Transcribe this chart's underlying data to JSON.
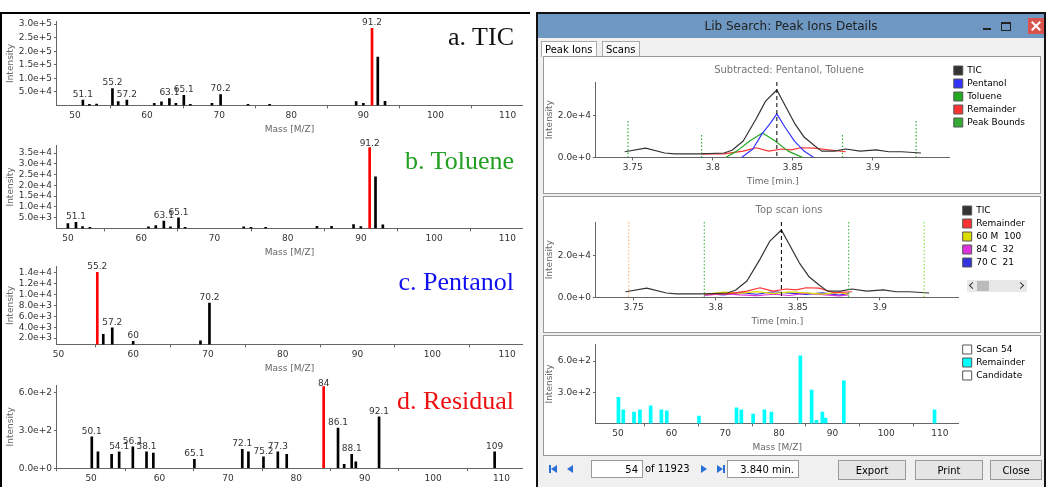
{
  "chart_data": [
    {
      "type": "bar",
      "title": "a. TIC",
      "xlabel": "Mass [M/Z]",
      "ylabel": "Intensity",
      "xlim": [
        47.5,
        112
      ],
      "xticks": [
        50,
        60,
        70,
        80,
        90,
        100,
        110
      ],
      "ylim": [
        0,
        310000
      ],
      "yticks": [
        {
          "value": 50000,
          "label": "5.0e+4"
        },
        {
          "value": 100000,
          "label": "1.0e+5"
        },
        {
          "value": 150000,
          "label": "1.5e+5"
        },
        {
          "value": 200000,
          "label": "2.0e+5"
        },
        {
          "value": 250000,
          "label": "2.5e+5"
        },
        {
          "value": 300000,
          "label": "3.0e+5"
        }
      ],
      "x": [
        51.1,
        52,
        53,
        55.2,
        56,
        57.2,
        61,
        62,
        63.1,
        64,
        65.1,
        66,
        69,
        70.2,
        74,
        77,
        89,
        90,
        91.2,
        92,
        93
      ],
      "values": [
        20000,
        4000,
        5000,
        62000,
        14000,
        20000,
        8000,
        13000,
        25000,
        8000,
        37000,
        4000,
        8000,
        40000,
        4000,
        4000,
        14000,
        8000,
        284000,
        178000,
        15000
      ],
      "colors": [
        "#000000",
        "#000000",
        "#000000",
        "#000000",
        "#000000",
        "#000000",
        "#000000",
        "#000000",
        "#000000",
        "#000000",
        "#000000",
        "#000000",
        "#000000",
        "#000000",
        "#000000",
        "#000000",
        "#000000",
        "#000000",
        "#ff0000",
        "#000000",
        "#000000"
      ],
      "annotations": [
        {
          "text": "51.1",
          "x": 51.1,
          "y": 20000
        },
        {
          "text": "55.2",
          "x": 55.2,
          "y": 62000
        },
        {
          "text": "57.2",
          "x": 57.2,
          "y": 20000
        },
        {
          "text": "63.1",
          "x": 63.1,
          "y": 25000
        },
        {
          "text": "65.1",
          "x": 65.1,
          "y": 37000
        },
        {
          "text": "70.2",
          "x": 70.2,
          "y": 40000
        },
        {
          "text": "91.2",
          "x": 91.2,
          "y": 284000
        }
      ]
    },
    {
      "type": "bar",
      "title": "b. Toluene",
      "xlabel": "Mass [M/Z]",
      "ylabel": "Intensity",
      "xlim": [
        48.5,
        112
      ],
      "xticks": [
        50,
        60,
        70,
        80,
        90,
        100,
        110
      ],
      "ylim": [
        0,
        38600
      ],
      "yticks": [
        {
          "value": 5000,
          "label": "5.0e+3"
        },
        {
          "value": 10000,
          "label": "1.0e+4"
        },
        {
          "value": 15000,
          "label": "1.5e+4"
        },
        {
          "value": 20000,
          "label": "2.0e+4"
        },
        {
          "value": 25000,
          "label": "2.5e+4"
        },
        {
          "value": 30000,
          "label": "3.0e+4"
        },
        {
          "value": 35000,
          "label": "3.5e+4"
        }
      ],
      "x": [
        50,
        51.1,
        52,
        53,
        61,
        62,
        63.1,
        64,
        65.1,
        66,
        74,
        75,
        77,
        84,
        86,
        89,
        90,
        91.2,
        92,
        93
      ],
      "values": [
        2200,
        2800,
        900,
        500,
        700,
        1300,
        3400,
        700,
        4900,
        500,
        700,
        500,
        500,
        1000,
        1000,
        1800,
        900,
        37600,
        24000,
        1700
      ],
      "colors": [
        "#000000",
        "#000000",
        "#000000",
        "#000000",
        "#000000",
        "#000000",
        "#000000",
        "#000000",
        "#000000",
        "#000000",
        "#000000",
        "#000000",
        "#000000",
        "#000000",
        "#000000",
        "#000000",
        "#000000",
        "#ff0000",
        "#000000",
        "#000000"
      ],
      "annotations": [
        {
          "text": "51.1",
          "x": 51.1,
          "y": 2800
        },
        {
          "text": "63.1",
          "x": 63.1,
          "y": 3400
        },
        {
          "text": "65.1",
          "x": 65.1,
          "y": 4900
        },
        {
          "text": "91.2",
          "x": 91.2,
          "y": 37600
        }
      ]
    },
    {
      "type": "bar",
      "title": "c. Pentanol",
      "xlabel": "Mass [M/Z]",
      "ylabel": "Intensity",
      "xlim": [
        49.8,
        112
      ],
      "xticks": [
        50,
        60,
        70,
        80,
        90,
        100,
        110
      ],
      "ylim": [
        860,
        15100
      ],
      "yticks": [
        {
          "value": 2000,
          "label": "2.0e+3"
        },
        {
          "value": 4000,
          "label": "4.0e+3"
        },
        {
          "value": 6000,
          "label": "6.0e+3"
        },
        {
          "value": 8000,
          "label": "8.0e+3"
        },
        {
          "value": 10000,
          "label": "1.0e+4"
        },
        {
          "value": 12000,
          "label": "1.2e+4"
        },
        {
          "value": 14000,
          "label": "1.4e+4"
        }
      ],
      "x": [
        55.2,
        56,
        57.2,
        60,
        69,
        70.2
      ],
      "values": [
        14000,
        2700,
        3900,
        1400,
        1500,
        8400
      ],
      "colors": [
        "#ff0000",
        "#000000",
        "#000000",
        "#000000",
        "#000000",
        "#000000"
      ],
      "annotations": [
        {
          "text": "55.2",
          "x": 55.2,
          "y": 14000
        },
        {
          "text": "57.2",
          "x": 57.2,
          "y": 3900
        },
        {
          "text": "60",
          "x": 60,
          "y": 1400
        },
        {
          "text": "70.2",
          "x": 70.2,
          "y": 8400
        }
      ]
    },
    {
      "type": "bar",
      "title": "d. Residual",
      "ylabel": "Intensity",
      "xlim": [
        45,
        113
      ],
      "xticks": [
        50,
        60,
        70,
        80,
        90,
        100,
        110
      ],
      "ylim": [
        0,
        660
      ],
      "yticks": [
        {
          "value": 0,
          "label": "0.0e+0"
        },
        {
          "value": 300,
          "label": "3.0e+2"
        },
        {
          "value": 600,
          "label": "6.0e+2"
        }
      ],
      "x": [
        50.1,
        51,
        53,
        54.1,
        56.1,
        58.1,
        59.1,
        65.1,
        72.1,
        73,
        75.2,
        77.3,
        78.6,
        84,
        86.1,
        87,
        88.1,
        88.7,
        92.1,
        109
      ],
      "values": [
        250,
        130,
        110,
        130,
        170,
        130,
        120,
        70,
        150,
        130,
        90,
        130,
        110,
        650,
        320,
        30,
        110,
        50,
        410,
        130
      ],
      "colors": [
        "#000000",
        "#000000",
        "#000000",
        "#000000",
        "#000000",
        "#000000",
        "#000000",
        "#000000",
        "#000000",
        "#000000",
        "#000000",
        "#000000",
        "#000000",
        "#ff0000",
        "#000000",
        "#000000",
        "#000000",
        "#000000",
        "#000000",
        "#000000"
      ],
      "annotations": [
        {
          "text": "50.1",
          "x": 50.1,
          "y": 250
        },
        {
          "text": "54.1",
          "x": 54.1,
          "y": 130
        },
        {
          "text": "56.1",
          "x": 56.1,
          "y": 170
        },
        {
          "text": "58.1",
          "x": 58.1,
          "y": 130
        },
        {
          "text": "65.1",
          "x": 65.1,
          "y": 70
        },
        {
          "text": "72.1",
          "x": 72.1,
          "y": 150
        },
        {
          "text": "75.2",
          "x": 75.2,
          "y": 90
        },
        {
          "text": "77.3",
          "x": 77.3,
          "y": 130
        },
        {
          "text": "84",
          "x": 84,
          "y": 650
        },
        {
          "text": "86.1",
          "x": 86.1,
          "y": 320
        },
        {
          "text": "88.1",
          "x": 88.1,
          "y": 110
        },
        {
          "text": "92.1",
          "x": 92.1,
          "y": 410
        },
        {
          "text": "109",
          "x": 109,
          "y": 130
        }
      ]
    },
    {
      "type": "other",
      "title": "Lib Search: Peak Ions Details",
      "annotations": [
        "Peak Ions",
        "Scans",
        "54",
        "of 11923",
        "3.840 min.",
        "Export",
        "Print",
        "Close"
      ]
    },
    {
      "type": "line",
      "title": "Subtracted: Pentanol, Toluene",
      "xlabel": "Time [min.]",
      "ylabel": "Intensity",
      "xlim": [
        3.727,
        3.948
      ],
      "xticks": [
        3.75,
        3.8,
        3.85,
        3.9
      ],
      "ylim": [
        0,
        36000
      ],
      "yticks": [
        {
          "value": 0,
          "label": "0.0e+0"
        },
        {
          "value": 20000,
          "label": "2.0e+4"
        }
      ],
      "legend": "right",
      "marker": "none",
      "series": [
        {
          "name": "TIC",
          "color": "#333333",
          "x": [
            3.745,
            3.758,
            3.77,
            3.776,
            3.793,
            3.807,
            3.812,
            3.819,
            3.827,
            3.833,
            3.84,
            3.845,
            3.851,
            3.857,
            3.863,
            3.868,
            3.876,
            3.883,
            3.892,
            3.902,
            3.91,
            3.918,
            3.93
          ],
          "values": [
            2700,
            4400,
            2100,
            1700,
            1700,
            2100,
            3400,
            7800,
            18300,
            26900,
            32200,
            25000,
            16400,
            9700,
            5900,
            3000,
            3000,
            4000,
            3000,
            3600,
            2700,
            2700,
            2100
          ]
        },
        {
          "name": "Pentanol",
          "color": "#3333ff",
          "x": [
            3.818,
            3.825,
            3.831,
            3.836,
            3.84,
            3.845,
            3.851,
            3.857,
            3.863
          ],
          "values": [
            0,
            4000,
            11600,
            16400,
            20800,
            14500,
            7800,
            3000,
            0
          ]
        },
        {
          "name": "Toluene",
          "color": "#22aa22",
          "x": [
            3.808,
            3.815,
            3.823,
            3.831,
            3.839,
            3.847,
            3.856
          ],
          "values": [
            0,
            3000,
            7800,
            11600,
            7800,
            3000,
            0
          ]
        },
        {
          "name": "Remainder",
          "color": "#ff3333",
          "x": [
            3.793,
            3.807,
            3.819,
            3.827,
            3.835,
            3.843,
            3.849,
            3.855,
            3.863,
            3.883
          ],
          "values": [
            1700,
            1700,
            3000,
            4600,
            3000,
            4000,
            3600,
            4600,
            4400,
            2700
          ]
        },
        {
          "name": "Peak Bounds",
          "color": "#33aa33",
          "line_style": "dotted",
          "x": [
            3.747,
            3.747,
            null,
            3.793,
            3.793,
            null,
            3.881,
            3.881,
            null,
            3.927,
            3.927
          ],
          "values": [
            0,
            18000,
            null,
            0,
            11000,
            null,
            0,
            11000,
            null,
            0,
            18000
          ]
        }
      ],
      "ref_lines": [
        {
          "axis": "x",
          "value": 3.84,
          "color": "#000000",
          "line_style": "dashed"
        }
      ]
    },
    {
      "type": "line",
      "title": "Top scan ions",
      "xlabel": "Time [min.]",
      "ylabel": "Intensity",
      "xlim": [
        3.727,
        3.948
      ],
      "xticks": [
        3.75,
        3.8,
        3.85,
        3.9
      ],
      "ylim": [
        0,
        36000
      ],
      "yticks": [
        {
          "value": 0,
          "label": "0.0e+0"
        },
        {
          "value": 20000,
          "label": "2.0e+4"
        }
      ],
      "legend": "right",
      "marker": "none",
      "series": [
        {
          "name": "TIC",
          "color": "#333333",
          "x": [
            3.745,
            3.758,
            3.77,
            3.776,
            3.793,
            3.807,
            3.812,
            3.819,
            3.827,
            3.833,
            3.84,
            3.845,
            3.851,
            3.857,
            3.863,
            3.868,
            3.876,
            3.883,
            3.892,
            3.902,
            3.91,
            3.918,
            3.93
          ],
          "values": [
            2700,
            4400,
            2100,
            1700,
            1700,
            2100,
            3400,
            7800,
            18300,
            26900,
            32200,
            25000,
            16400,
            9700,
            5900,
            3000,
            3000,
            4000,
            3000,
            3600,
            2700,
            2700,
            2100
          ]
        },
        {
          "name": "Remainder",
          "color": "#ff3333",
          "x": [
            3.793,
            3.807,
            3.819,
            3.827,
            3.835,
            3.843,
            3.849,
            3.855,
            3.863,
            3.872,
            3.883
          ],
          "values": [
            1700,
            1700,
            3000,
            4600,
            3000,
            4000,
            3600,
            4600,
            4400,
            2200,
            2700
          ]
        },
        {
          "name": "60 M  100",
          "color": "#dddd00",
          "x": [
            3.793,
            3.805,
            3.815,
            3.825,
            3.835,
            3.845,
            3.855,
            3.865,
            3.875,
            3.881
          ],
          "values": [
            1500,
            2500,
            2000,
            2800,
            1800,
            2600,
            2200,
            1600,
            2400,
            1500
          ]
        },
        {
          "name": "84 C  32",
          "color": "#dd33dd",
          "x": [
            3.793,
            3.805,
            3.815,
            3.825,
            3.835,
            3.845,
            3.855,
            3.865,
            3.875,
            3.881
          ],
          "values": [
            1000,
            1800,
            1200,
            800,
            1500,
            900,
            2000,
            1300,
            700,
            1200
          ]
        },
        {
          "name": "70 C  21",
          "color": "#3333dd",
          "x": [
            3.793,
            3.805,
            3.815,
            3.825,
            3.835,
            3.845,
            3.855,
            3.865,
            3.875,
            3.881
          ],
          "values": [
            1800,
            1200,
            2300,
            1500,
            2700,
            2000,
            1400,
            2200,
            1100,
            1900
          ]
        }
      ],
      "ref_lines": [
        {
          "axis": "x",
          "value": 3.84,
          "color": "#000000",
          "line_style": "dashed"
        },
        {
          "axis": "x",
          "value": 3.747,
          "color": "#ffaa66",
          "line_style": "dotted"
        },
        {
          "axis": "x",
          "value": 3.793,
          "color": "#33aa33",
          "line_style": "dotted"
        },
        {
          "axis": "x",
          "value": 3.881,
          "color": "#33aa33",
          "line_style": "dotted"
        },
        {
          "axis": "x",
          "value": 3.927,
          "color": "#77dd22",
          "line_style": "dotted"
        }
      ]
    },
    {
      "type": "bar",
      "xlabel": "Mass [M/Z]",
      "ylabel": "Intensity",
      "xlim": [
        45.9,
        113.5
      ],
      "xticks": [
        50,
        60,
        70,
        80,
        90,
        100,
        110
      ],
      "ylim": [
        0,
        760
      ],
      "yticks": [
        {
          "value": 300,
          "label": "3.0e+2"
        },
        {
          "value": 600,
          "label": "6.0e+2"
        }
      ],
      "legend": "right",
      "x": [
        50.1,
        51,
        53,
        54.1,
        56.1,
        58.1,
        59.1,
        65.1,
        72.1,
        73,
        75.2,
        77.3,
        78.6,
        84,
        86.1,
        87,
        88.1,
        88.7,
        92.1,
        109
      ],
      "series": [
        {
          "name": "Scan 54",
          "color": "#ffffff",
          "values": [
            null,
            null,
            null,
            null,
            null,
            null,
            null,
            null,
            null,
            null,
            null,
            null,
            null,
            null,
            null,
            null,
            null,
            null,
            null,
            null
          ]
        },
        {
          "name": "Remainder",
          "color": "#00ffff",
          "values": [
            250,
            130,
            110,
            130,
            170,
            130,
            120,
            70,
            150,
            130,
            90,
            130,
            110,
            650,
            320,
            30,
            110,
            50,
            410,
            130
          ]
        },
        {
          "name": "Candidate",
          "color": "#ffffff",
          "values": [
            null,
            null,
            null,
            null,
            null,
            null,
            null,
            null,
            null,
            null,
            null,
            null,
            null,
            null,
            null,
            null,
            null,
            null,
            null,
            null
          ]
        }
      ]
    }
  ]
}
